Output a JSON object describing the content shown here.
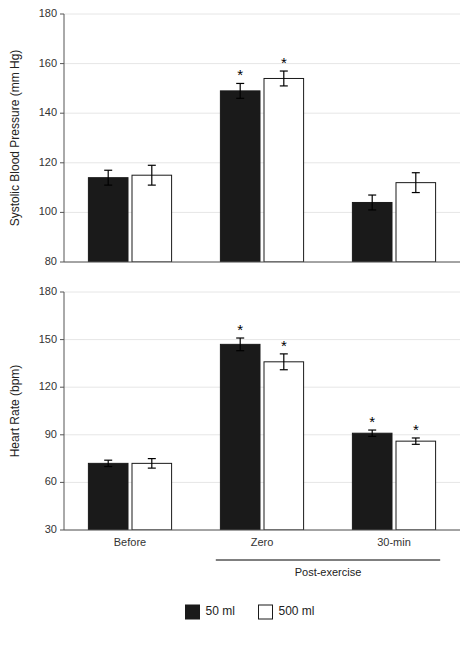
{
  "chart_data": [
    {
      "type": "bar",
      "y_label": "Systolic Blood Pressure (mm Hg)",
      "categories": [
        "Before",
        "Zero",
        "30-min"
      ],
      "tick_labels": "y",
      "ylim": [
        80,
        180
      ],
      "yticks": [
        80,
        100,
        120,
        140,
        160,
        180
      ],
      "series": [
        {
          "name": "50 ml",
          "color": "#1a1a1a",
          "values": [
            114,
            149,
            104
          ],
          "errors": [
            3,
            3,
            3
          ],
          "significance": [
            null,
            "*",
            null
          ]
        },
        {
          "name": "500 ml",
          "color": "#ffffff",
          "values": [
            115,
            154,
            112
          ],
          "errors": [
            4,
            3,
            4
          ],
          "significance": [
            null,
            "*",
            null
          ]
        }
      ]
    },
    {
      "type": "bar",
      "y_label": "Heart Rate (bpm)",
      "categories": [
        "Before",
        "Zero",
        "30-min"
      ],
      "ylim": [
        30,
        180
      ],
      "yticks": [
        30,
        60,
        90,
        120,
        150,
        180
      ],
      "legend": "bottom",
      "annotations": [
        {
          "text": "Post-exercise",
          "from": "Zero",
          "to": "30-min"
        }
      ],
      "series": [
        {
          "name": "50 ml",
          "color": "#1a1a1a",
          "values": [
            72,
            147,
            91
          ],
          "errors": [
            2,
            4,
            2
          ],
          "significance": [
            null,
            "*",
            "*"
          ]
        },
        {
          "name": "500 ml",
          "color": "#ffffff",
          "values": [
            72,
            136,
            86
          ],
          "errors": [
            3,
            5,
            2
          ],
          "significance": [
            null,
            "*",
            "*"
          ]
        }
      ]
    }
  ]
}
